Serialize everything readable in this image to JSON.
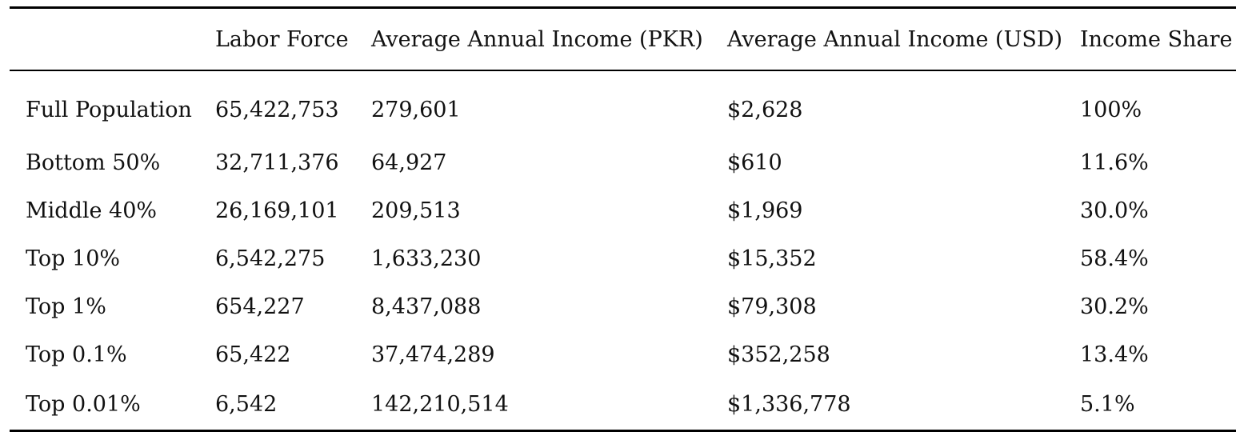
{
  "table": {
    "headers": [
      "",
      "Labor Force",
      "Average Annual Income (PKR)",
      "Average Annual Income (USD)",
      "Income Share"
    ],
    "rows": [
      [
        "Full Population",
        "65,422,753",
        "279,601",
        "$2,628",
        "100%"
      ],
      [
        "Bottom 50%",
        "32,711,376",
        "64,927",
        "$610",
        "11.6%"
      ],
      [
        "Middle 40%",
        "26,169,101",
        "209,513",
        "$1,969",
        "30.0%"
      ],
      [
        "Top 10%",
        "6,542,275",
        "1,633,230",
        "$15,352",
        "58.4%"
      ],
      [
        "Top 1%",
        "654,227",
        "8,437,088",
        "$79,308",
        "30.2%"
      ],
      [
        "Top 0.1%",
        "65,422",
        "37,474,289",
        "$352,258",
        "13.4%"
      ],
      [
        "Top 0.01%",
        "6,542",
        "142,210,514",
        "$1,336,778",
        "5.1%"
      ]
    ]
  }
}
